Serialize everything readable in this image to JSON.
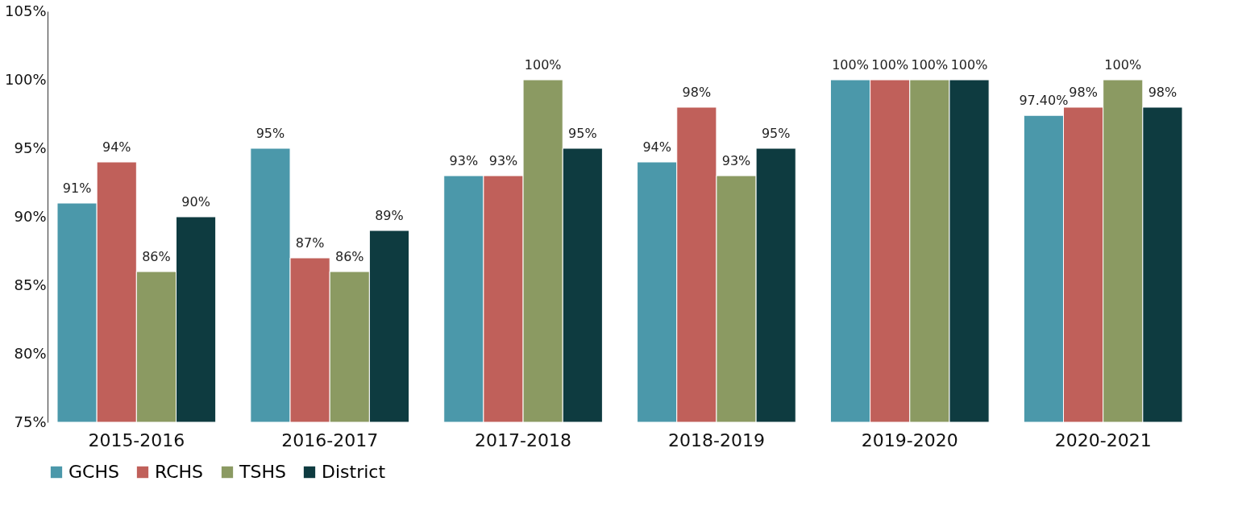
{
  "chart_data": {
    "type": "bar",
    "categories": [
      "2015-2016",
      "2016-2017",
      "2017-2018",
      "2018-2019",
      "2019-2020",
      "2020-2021"
    ],
    "series": [
      {
        "name": "GCHS",
        "color": "#4b98aa",
        "values": [
          91,
          95,
          93,
          94,
          100,
          97.4
        ],
        "value_labels": [
          "91%",
          "95%",
          "93%",
          "94%",
          "100%",
          "97.40%"
        ]
      },
      {
        "name": "RCHS",
        "color": "#c0605a",
        "values": [
          94,
          87,
          93,
          98,
          100,
          98
        ],
        "value_labels": [
          "94%",
          "87%",
          "93%",
          "98%",
          "100%",
          "98%"
        ]
      },
      {
        "name": "TSHS",
        "color": "#8b9a62",
        "values": [
          86,
          86,
          100,
          93,
          100,
          100
        ],
        "value_labels": [
          "86%",
          "86%",
          "100%",
          "93%",
          "100%",
          "100%"
        ]
      },
      {
        "name": "District",
        "color": "#0e3b40",
        "values": [
          90,
          89,
          95,
          95,
          100,
          98
        ],
        "value_labels": [
          "90%",
          "89%",
          "95%",
          "95%",
          "100%",
          "98%"
        ]
      }
    ],
    "ylim": [
      75,
      105
    ],
    "yticks": [
      {
        "value": 75,
        "label": "75%"
      },
      {
        "value": 80,
        "label": "80%"
      },
      {
        "value": 85,
        "label": "85%"
      },
      {
        "value": 90,
        "label": "90%"
      },
      {
        "value": 95,
        "label": "95%"
      },
      {
        "value": 100,
        "label": "100%"
      },
      {
        "value": 105,
        "label": "105%"
      }
    ],
    "grid": false,
    "legend": "bottom"
  }
}
